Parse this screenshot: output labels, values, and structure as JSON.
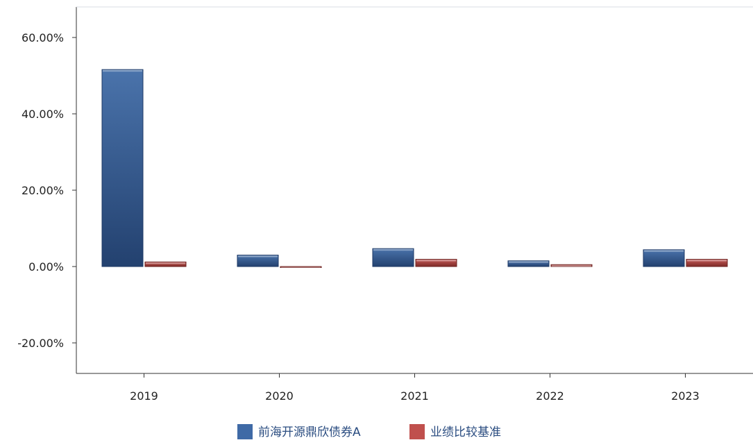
{
  "chart_data": {
    "type": "bar",
    "title": "",
    "categories": [
      "2019",
      "2020",
      "2021",
      "2022",
      "2023"
    ],
    "series": [
      {
        "name": "前海开源鼎欣债券A",
        "values": [
          51.6,
          3.0,
          4.7,
          1.5,
          4.4
        ],
        "color": "#3f6aa6"
      },
      {
        "name": "业绩比较基准",
        "values": [
          1.2,
          -0.2,
          1.9,
          0.5,
          1.9
        ],
        "color": "#c0504d"
      }
    ],
    "ylim": [
      -28,
      68
    ],
    "yticks": [
      60,
      40,
      20,
      0,
      -20
    ],
    "ytick_labels": [
      "60.00%",
      "40.00%",
      "20.00%",
      "0.00%",
      "-20.00%"
    ],
    "xlabel": "",
    "ylabel": "",
    "grid": false,
    "legend_position": "bottom-center"
  }
}
